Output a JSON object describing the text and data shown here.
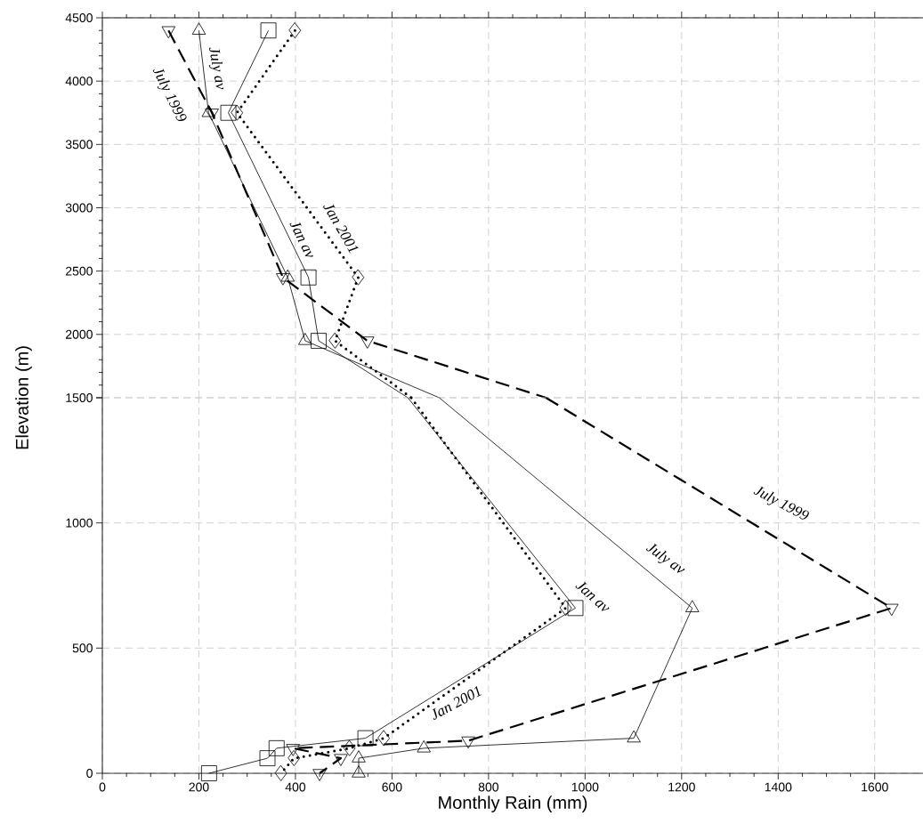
{
  "chart_data": [
    {
      "type": "line",
      "ylabel": "Elevation (m)",
      "xlim": [
        0,
        1700
      ],
      "ylim": [
        1500,
        4500
      ],
      "xticks": [
        0,
        200,
        400,
        600,
        800,
        1000,
        1200,
        1400,
        1600
      ],
      "yticks": [
        {
          "value": 1500,
          "label": null
        },
        2000,
        2500,
        3000,
        3500,
        4000,
        4500
      ],
      "grid": true,
      "tick_labels": "y",
      "series": [
        {
          "color": "#000000",
          "marker": "triangle",
          "line_style": "solid",
          "x": [
            200,
            220,
            384,
            420,
            698
          ],
          "values": [
            4400,
            3750,
            2450,
            1950,
            1500
          ]
        },
        {
          "color": "#000000",
          "marker": "square",
          "line_style": "solid",
          "x": [
            344,
            261,
            427,
            448,
            633
          ],
          "values": [
            4400,
            3750,
            2450,
            1950,
            1500
          ]
        },
        {
          "color": "#000000",
          "marker": "diamond",
          "line_style": "dotted",
          "x": [
            399,
            279,
            530,
            482,
            640
          ],
          "values": [
            4400,
            3750,
            2450,
            1950,
            1500
          ]
        },
        {
          "color": "#000000",
          "marker": "triangle-down",
          "line_style": "dashed",
          "x": [
            137,
            227,
            374,
            549,
            919
          ],
          "values": [
            4400,
            3750,
            2450,
            1950,
            1500
          ]
        }
      ],
      "annotations": [
        "July av",
        "July 1999",
        "Jan av",
        "Jan 2001"
      ]
    },
    {
      "type": "line",
      "xlabel": "Monthly Rain (mm)",
      "xlim": [
        0,
        1700
      ],
      "ylim": [
        0,
        1500
      ],
      "xticks": [
        0,
        200,
        400,
        600,
        800,
        1000,
        1200,
        1400,
        1600
      ],
      "yticks": [
        0,
        500,
        1000,
        1500
      ],
      "grid": true,
      "series": [
        {
          "color": "#000000",
          "marker": "triangle",
          "line_style": "solid",
          "x": [
            698,
            1222,
            1101,
            666,
            531,
            531
          ],
          "values": [
            1500,
            660,
            140,
            100,
            60,
            0
          ]
        },
        {
          "color": "#000000",
          "marker": "square",
          "line_style": "solid",
          "x": [
            633,
            980,
            545,
            361,
            342,
            221
          ],
          "values": [
            1500,
            660,
            140,
            100,
            60,
            0
          ]
        },
        {
          "color": "#000000",
          "marker": "diamond",
          "line_style": "dotted",
          "x": [
            640,
            960,
            583,
            512,
            397,
            370
          ],
          "values": [
            1500,
            660,
            140,
            100,
            60,
            0
          ]
        },
        {
          "color": "#000000",
          "marker": "triangle-down",
          "line_style": "dashed",
          "x": [
            919,
            1635,
            758,
            395,
            494,
            450
          ],
          "values": [
            1500,
            660,
            130,
            100,
            60,
            0
          ]
        }
      ],
      "annotations": [
        "July 1999",
        "July av",
        "Jan av",
        "Jan 2001"
      ]
    }
  ]
}
